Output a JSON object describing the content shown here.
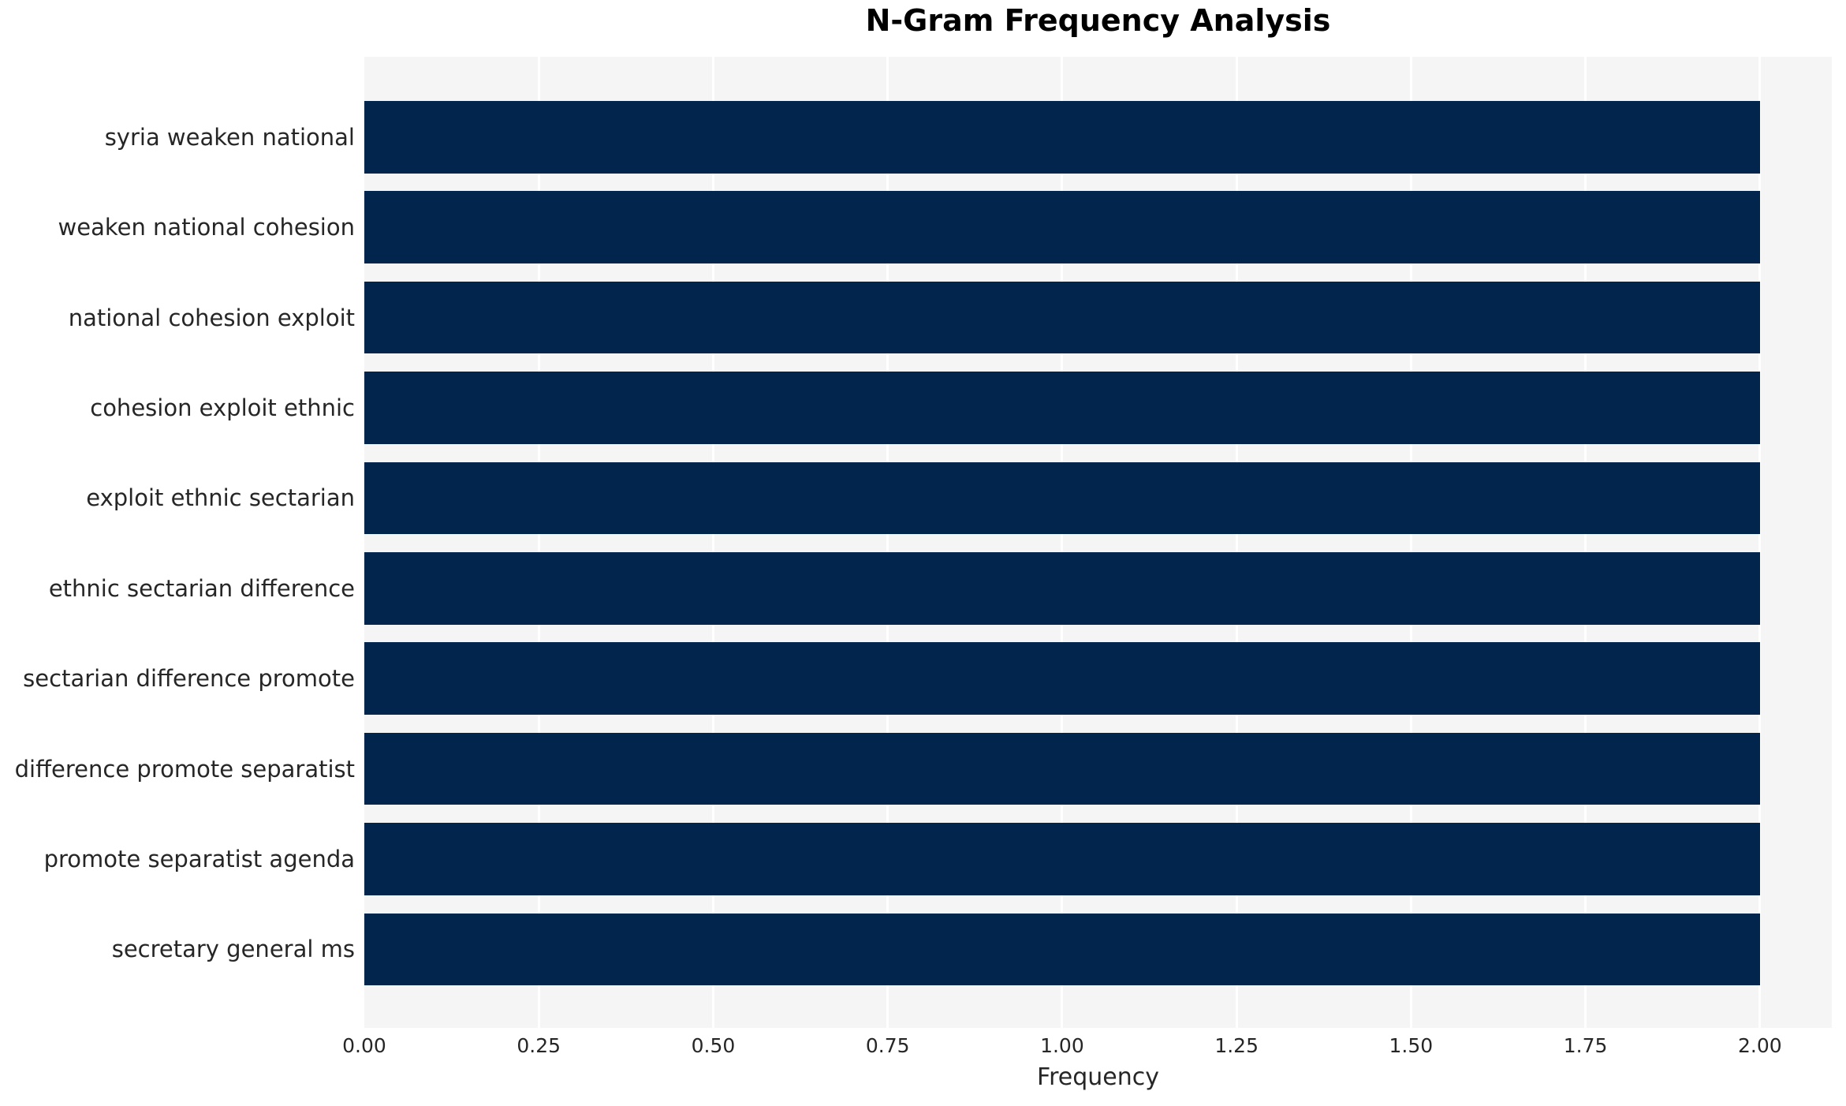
{
  "chart_data": {
    "type": "bar",
    "orientation": "horizontal",
    "title": "N-Gram Frequency Analysis",
    "xlabel": "Frequency",
    "ylabel": "",
    "categories": [
      "syria weaken national",
      "weaken national cohesion",
      "national cohesion exploit",
      "cohesion exploit ethnic",
      "exploit ethnic sectarian",
      "ethnic sectarian difference",
      "sectarian difference promote",
      "difference promote separatist",
      "promote separatist agenda",
      "secretary general ms"
    ],
    "values": [
      2,
      2,
      2,
      2,
      2,
      2,
      2,
      2,
      2,
      2
    ],
    "xlim": [
      0,
      2.103
    ],
    "xticks": [
      0.0,
      0.25,
      0.5,
      0.75,
      1.0,
      1.25,
      1.5,
      1.75,
      2.0
    ],
    "xtick_labels": [
      "0.00",
      "0.25",
      "0.50",
      "0.75",
      "1.00",
      "1.25",
      "1.50",
      "1.75",
      "2.00"
    ],
    "grid": true,
    "legend": false,
    "colors": {
      "bar": "#02254e",
      "plot_background": "#f5f5f5",
      "gridline": "#ffffff",
      "figure_background": "#ffffff",
      "tick_text": "#262626",
      "title_text": "#000000"
    }
  }
}
